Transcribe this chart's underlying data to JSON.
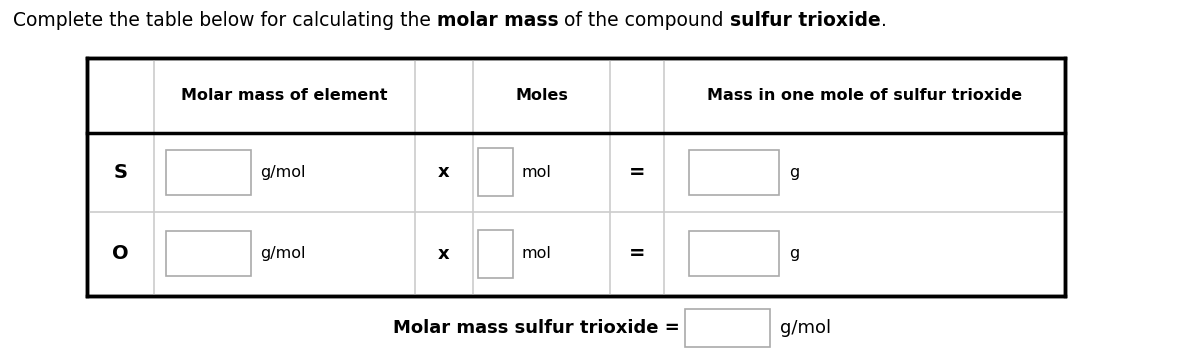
{
  "title_parts": [
    {
      "text": "Complete the table below for calculating the ",
      "bold": false
    },
    {
      "text": "molar mass",
      "bold": true
    },
    {
      "text": " of the compound ",
      "bold": false
    },
    {
      "text": "sulfur trioxide",
      "bold": true
    },
    {
      "text": ".",
      "bold": false
    }
  ],
  "col_headers": [
    "Molar mass of element",
    "Moles",
    "Mass in one mole of sulfur trioxide"
  ],
  "row_labels": [
    "S",
    "O"
  ],
  "unit_gmol": "g/mol",
  "unit_mol": "mol",
  "unit_g": "g",
  "multiply_symbol": "x",
  "equals_symbol": "=",
  "footer_label": "Molar mass sulfur trioxide =",
  "footer_unit": "g/mol",
  "bg_color": "#ffffff",
  "box_edge_color": "#aaaaaa",
  "table_edge_color": "#000000",
  "header_line_color": "#000000",
  "inner_line_color": "#cccccc",
  "text_color": "#000000",
  "fig_width": 12.0,
  "fig_height": 3.58,
  "dpi": 100
}
